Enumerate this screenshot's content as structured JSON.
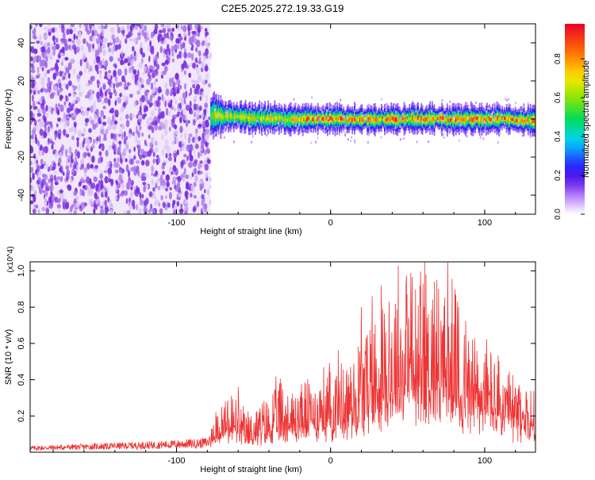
{
  "title": "C2E5.2025.272.19.33.G19",
  "colors": {
    "snr_line": "#ee3333",
    "noise_dots": "#7a2ee0",
    "noise_light": "#d8c2f2",
    "axis": "#000000"
  },
  "chart_data": [
    {
      "type": "heatmap",
      "name": "spectrogram",
      "xlabel": "Height of straight line (km)",
      "ylabel": "Frequency (Hz)",
      "xlim": [
        -195,
        133
      ],
      "ylim": [
        -50,
        50
      ],
      "xticks": [
        -100,
        0,
        100
      ],
      "yticks": [
        -40,
        -20,
        0,
        20,
        40
      ],
      "noise_region_x": [
        -195,
        -78
      ],
      "signal": {
        "x_start": -78,
        "x_end": 133,
        "center_freq": [
          [
            -78,
            2
          ],
          [
            -50,
            0.5
          ],
          [
            -25,
            0
          ],
          [
            0,
            0
          ],
          [
            20,
            0
          ],
          [
            50,
            0
          ],
          [
            80,
            0
          ],
          [
            110,
            0
          ],
          [
            133,
            -1
          ]
        ],
        "halfwidth_hz": 4,
        "peak_amplitude": 0.9
      },
      "colorbar": {
        "label": "Normalized spectral amplitude",
        "range": [
          0,
          0.98
        ],
        "ticks": [
          0.0,
          0.2,
          0.4,
          0.6,
          0.8
        ]
      }
    },
    {
      "type": "line",
      "name": "snr",
      "xlabel": "Height of straight line (km)",
      "ylabel": "SNR (10 * v/v)",
      "scale_label": "(x10^4)",
      "xlim": [
        -195,
        133
      ],
      "ylim": [
        0,
        1.05
      ],
      "xticks": [
        -100,
        0,
        100
      ],
      "yticks": [
        0.2,
        0.4,
        0.6,
        0.8,
        1.0
      ],
      "envelope": {
        "x": [
          -195,
          -150,
          -110,
          -85,
          -79,
          -77,
          -72,
          -65,
          -60,
          -55,
          -45,
          -40,
          -35,
          -30,
          -25,
          -15,
          -5,
          0,
          5,
          10,
          15,
          20,
          25,
          30,
          35,
          40,
          45,
          50,
          55,
          60,
          65,
          70,
          75,
          80,
          85,
          90,
          95,
          100,
          105,
          110,
          115,
          120,
          125,
          133
        ],
        "y": [
          0.025,
          0.035,
          0.045,
          0.055,
          0.06,
          0.15,
          0.19,
          0.26,
          0.2,
          0.16,
          0.2,
          0.22,
          0.28,
          0.3,
          0.25,
          0.3,
          0.33,
          0.35,
          0.38,
          0.4,
          0.43,
          0.5,
          0.55,
          0.6,
          0.62,
          0.66,
          0.7,
          0.72,
          0.68,
          0.75,
          0.72,
          0.74,
          0.68,
          0.63,
          0.58,
          0.52,
          0.48,
          0.45,
          0.42,
          0.36,
          0.32,
          0.3,
          0.28,
          0.24
        ]
      },
      "peaks": [
        [
          -60,
          0.36
        ],
        [
          -33,
          0.38
        ],
        [
          20,
          0.8
        ],
        [
          27,
          0.86
        ],
        [
          33,
          0.92
        ],
        [
          38,
          0.83
        ],
        [
          44,
          1.03
        ],
        [
          52,
          0.99
        ],
        [
          60,
          0.93
        ],
        [
          70,
          0.9
        ],
        [
          76,
          1.05
        ],
        [
          83,
          0.8
        ],
        [
          92,
          0.62
        ],
        [
          104,
          0.55
        ],
        [
          120,
          0.35
        ]
      ]
    }
  ]
}
